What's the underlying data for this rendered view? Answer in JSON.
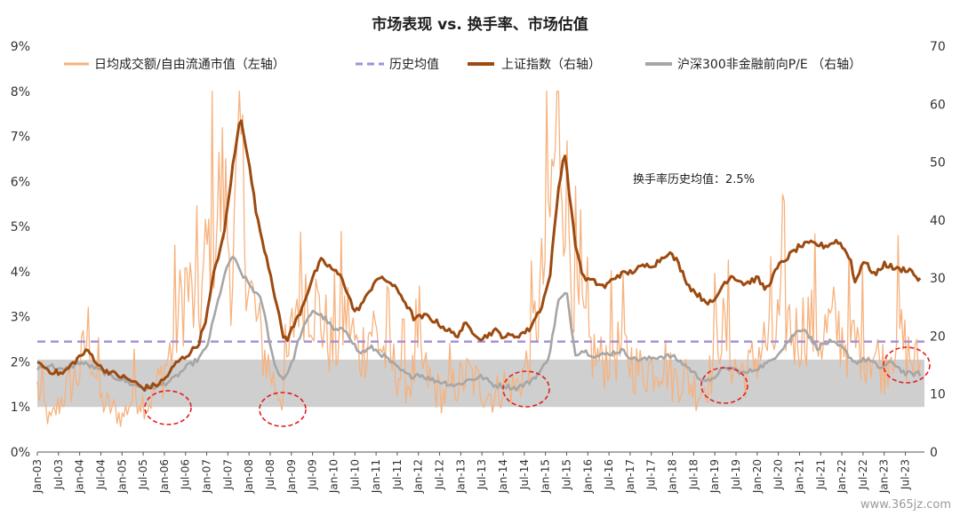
{
  "chart_data": {
    "type": "line",
    "title": "市场表现 vs. 换手率、市场估值",
    "y_left": {
      "ticks": [
        "0%",
        "1%",
        "2%",
        "3%",
        "4%",
        "5%",
        "6%",
        "7%",
        "8%",
        "9%"
      ],
      "ylim": [
        0,
        9
      ]
    },
    "y_right": {
      "ticks": [
        "0",
        "10",
        "20",
        "30",
        "40",
        "50",
        "60",
        "70"
      ],
      "ylim": [
        0,
        70
      ]
    },
    "x_ticks": [
      "Jan-03",
      "Jul-03",
      "Jan-04",
      "Jul-04",
      "Jan-05",
      "Jul-05",
      "Jan-06",
      "Jul-06",
      "Jan-07",
      "Jul-07",
      "Jan-08",
      "Jul-08",
      "Jan-09",
      "Jul-09",
      "Jan-10",
      "Jul-10",
      "Jan-11",
      "Jul-11",
      "Jan-12",
      "Jul-12",
      "Jan-13",
      "Jul-13",
      "Jan-14",
      "Jul-14",
      "Jan-15",
      "Jul-15",
      "Jan-16",
      "Jul-16",
      "Jan-17",
      "Jul-17",
      "Jan-18",
      "Jul-18",
      "Jan-19",
      "Jul-19",
      "Jan-20",
      "Jul-20",
      "Jan-21",
      "Jul-21",
      "Jan-22",
      "Jul-22",
      "Jan-23",
      "Jul-23"
    ],
    "x_range": [
      "Jan-03",
      "Nov-23"
    ],
    "band": {
      "from": 1.0,
      "to": 2.05,
      "color": "#cfcfcf"
    },
    "legend": [
      "日均成交额/自由流通市值（左轴）",
      "历史均值",
      "上证指数（右轴）",
      "沪深300非金融前向P/E （右轴）"
    ],
    "annotation": "换手率历史均值：2.5%",
    "colors": {
      "turnover": "#f6b27e",
      "mean": "#a590d6",
      "index": "#9c4a10",
      "pe": "#a6a6a6",
      "circle": "#e02020"
    },
    "series": [
      {
        "name": "日均成交额/自由流通市值（左轴）",
        "axis": "left",
        "t": [
          2003.0,
          2003.3,
          2003.6,
          2004.0,
          2004.2,
          2004.5,
          2004.8,
          2005.0,
          2005.3,
          2005.6,
          2005.9,
          2006.2,
          2006.5,
          2006.8,
          2007.0,
          2007.2,
          2007.4,
          2007.6,
          2007.8,
          2008.0,
          2008.3,
          2008.6,
          2008.8,
          2009.0,
          2009.2,
          2009.5,
          2009.8,
          2010.0,
          2010.3,
          2010.6,
          2010.9,
          2011.2,
          2011.5,
          2011.8,
          2012.0,
          2012.3,
          2012.6,
          2012.9,
          2013.2,
          2013.5,
          2013.8,
          2014.0,
          2014.3,
          2014.6,
          2014.9,
          2015.1,
          2015.3,
          2015.5,
          2015.7,
          2015.9,
          2016.0,
          2016.3,
          2016.6,
          2016.9,
          2017.2,
          2017.5,
          2017.8,
          2018.0,
          2018.3,
          2018.6,
          2018.9,
          2019.1,
          2019.3,
          2019.5,
          2019.8,
          2020.1,
          2020.4,
          2020.6,
          2020.9,
          2021.2,
          2021.5,
          2021.8,
          2022.1,
          2022.4,
          2022.7,
          2023.0,
          2023.3,
          2023.6,
          2023.85
        ],
        "values": [
          1.5,
          0.7,
          1.3,
          1.9,
          2.8,
          1.2,
          1.0,
          0.8,
          1.4,
          1.1,
          1.7,
          2.5,
          4.0,
          3.1,
          4.6,
          5.5,
          6.2,
          4.2,
          7.2,
          3.9,
          2.5,
          1.6,
          1.3,
          2.7,
          4.1,
          3.6,
          2.9,
          2.3,
          3.3,
          2.2,
          3.0,
          2.3,
          1.9,
          1.6,
          2.2,
          1.6,
          1.3,
          1.6,
          1.8,
          1.5,
          1.3,
          1.6,
          1.5,
          2.1,
          3.8,
          5.5,
          7.9,
          6.0,
          3.5,
          3.0,
          2.5,
          2.1,
          2.4,
          2.3,
          1.9,
          2.0,
          2.2,
          1.7,
          1.8,
          1.4,
          1.8,
          3.0,
          2.6,
          1.9,
          1.9,
          2.5,
          2.6,
          3.4,
          2.7,
          3.1,
          2.7,
          3.0,
          2.6,
          2.5,
          2.4,
          2.0,
          2.9,
          2.2,
          2.0
        ]
      },
      {
        "name": "历史均值",
        "axis": "left",
        "values": [
          2.45
        ]
      },
      {
        "name": "上证指数（右轴）",
        "axis": "right",
        "t": [
          2003.0,
          2003.3,
          2003.6,
          2004.0,
          2004.2,
          2004.5,
          2004.8,
          2005.0,
          2005.3,
          2005.5,
          2005.8,
          2006.0,
          2006.3,
          2006.5,
          2006.8,
          2007.0,
          2007.2,
          2007.4,
          2007.6,
          2007.8,
          2007.95,
          2008.2,
          2008.5,
          2008.8,
          2008.9,
          2009.2,
          2009.5,
          2009.7,
          2009.9,
          2010.2,
          2010.5,
          2010.8,
          2011.0,
          2011.3,
          2011.6,
          2011.9,
          2012.2,
          2012.5,
          2012.9,
          2013.1,
          2013.5,
          2013.8,
          2014.0,
          2014.3,
          2014.6,
          2014.9,
          2015.1,
          2015.3,
          2015.45,
          2015.7,
          2015.9,
          2016.1,
          2016.4,
          2016.7,
          2017.0,
          2017.3,
          2017.6,
          2017.9,
          2018.1,
          2018.4,
          2018.7,
          2018.95,
          2019.2,
          2019.4,
          2019.7,
          2020.0,
          2020.2,
          2020.5,
          2020.7,
          2021.0,
          2021.3,
          2021.6,
          2021.9,
          2022.2,
          2022.3,
          2022.5,
          2022.8,
          2023.0,
          2023.3,
          2023.6,
          2023.85
        ],
        "values": [
          15.5,
          14.0,
          13.5,
          16.5,
          17.5,
          14.5,
          13.5,
          13.0,
          12.0,
          11.0,
          11.5,
          12.5,
          15.5,
          16.5,
          18.5,
          23.5,
          32.0,
          37.0,
          48.5,
          58.0,
          52.0,
          40.0,
          31.0,
          20.0,
          19.5,
          24.0,
          30.0,
          33.0,
          32.0,
          30.0,
          24.0,
          27.0,
          30.0,
          29.5,
          27.0,
          23.0,
          23.5,
          22.0,
          20.0,
          22.0,
          19.5,
          21.0,
          20.0,
          20.0,
          21.0,
          25.0,
          30.0,
          45.0,
          52.0,
          36.0,
          30.0,
          29.5,
          28.5,
          30.5,
          31.0,
          32.0,
          32.5,
          34.5,
          33.0,
          28.5,
          26.5,
          25.5,
          29.0,
          30.5,
          29.0,
          30.0,
          28.0,
          32.0,
          33.5,
          35.5,
          36.0,
          35.5,
          36.5,
          33.5,
          29.0,
          33.0,
          30.5,
          32.5,
          31.5,
          31.5,
          29.5
        ]
      },
      {
        "name": "沪深300非金融前向P/E （右轴）",
        "axis": "right",
        "t": [
          2003.0,
          2003.3,
          2003.6,
          2004.0,
          2004.2,
          2004.5,
          2004.8,
          2005.0,
          2005.3,
          2005.6,
          2005.9,
          2006.2,
          2006.5,
          2006.8,
          2007.0,
          2007.2,
          2007.4,
          2007.6,
          2007.8,
          2008.0,
          2008.3,
          2008.6,
          2008.8,
          2009.0,
          2009.2,
          2009.5,
          2009.8,
          2010.0,
          2010.3,
          2010.6,
          2010.9,
          2011.2,
          2011.5,
          2011.8,
          2012.0,
          2012.3,
          2012.6,
          2012.9,
          2013.2,
          2013.5,
          2013.8,
          2014.0,
          2014.3,
          2014.6,
          2014.9,
          2015.1,
          2015.3,
          2015.5,
          2015.7,
          2015.9,
          2016.2,
          2016.5,
          2016.8,
          2017.1,
          2017.4,
          2017.7,
          2018.0,
          2018.3,
          2018.6,
          2018.9,
          2019.1,
          2019.4,
          2019.7,
          2020.0,
          2020.3,
          2020.6,
          2020.9,
          2021.1,
          2021.4,
          2021.7,
          2022.0,
          2022.3,
          2022.6,
          2022.9,
          2023.2,
          2023.5,
          2023.85
        ],
        "values": [
          14.5,
          15.0,
          14.0,
          15.5,
          15.0,
          14.0,
          13.0,
          12.5,
          11.5,
          11.0,
          11.5,
          12.5,
          14.5,
          16.0,
          18.0,
          24.0,
          30.0,
          34.0,
          31.0,
          29.0,
          26.0,
          15.0,
          12.5,
          15.0,
          20.0,
          24.5,
          23.0,
          21.0,
          21.0,
          17.0,
          18.0,
          16.5,
          14.5,
          13.0,
          13.5,
          12.5,
          12.0,
          11.5,
          12.5,
          13.0,
          11.5,
          11.5,
          11.0,
          12.0,
          14.0,
          17.0,
          26.0,
          27.5,
          17.0,
          17.5,
          16.5,
          17.0,
          17.5,
          16.0,
          16.0,
          16.5,
          16.5,
          15.0,
          13.0,
          12.0,
          14.0,
          14.5,
          13.5,
          14.5,
          15.5,
          18.0,
          20.5,
          21.5,
          18.0,
          19.0,
          18.0,
          15.5,
          16.0,
          14.5,
          15.5,
          13.5,
          13.5
        ]
      }
    ]
  },
  "watermark": "www.365jz.com"
}
